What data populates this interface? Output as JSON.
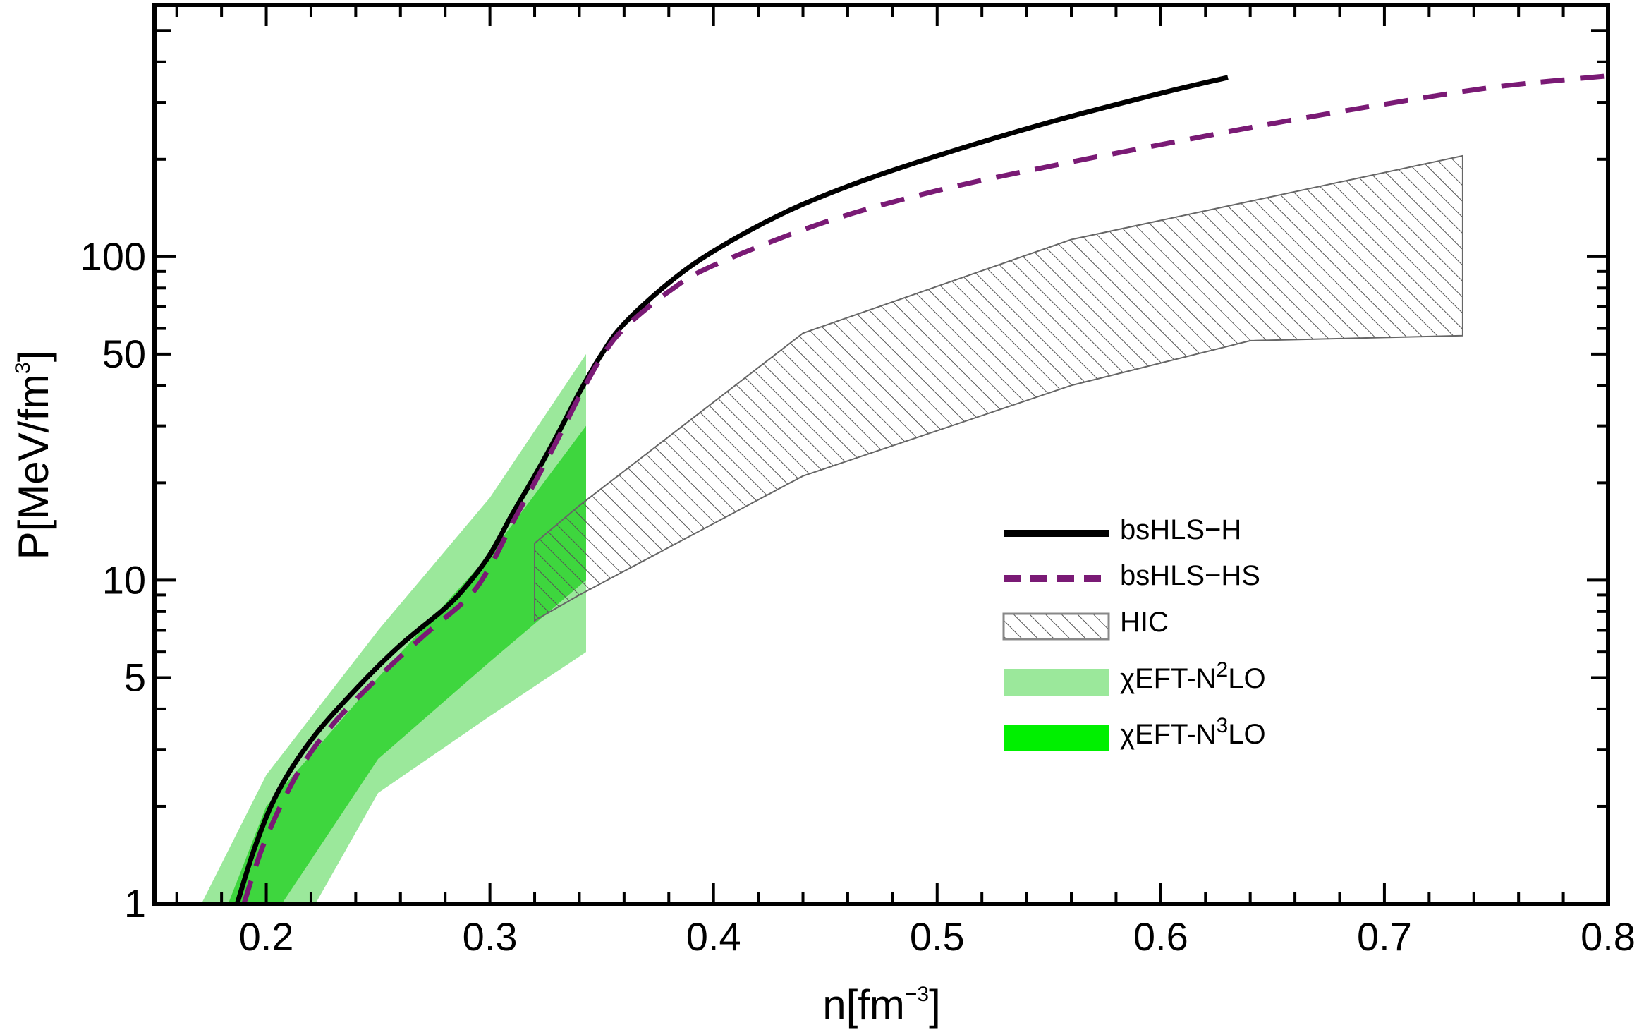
{
  "chart_data": {
    "type": "line",
    "title": "",
    "xlabel": {
      "text": "n[fm",
      "sup": "−3",
      "close": "]"
    },
    "ylabel": {
      "text": "P[MeV/fm",
      "sup": "3",
      "close": "]"
    },
    "xlim": [
      0.15,
      0.8
    ],
    "ylim": [
      1,
      600
    ],
    "yscale": "log",
    "grid": false,
    "legend_position": "center-right",
    "x_ticks": [
      {
        "value": 0.2,
        "label": "0.2"
      },
      {
        "value": 0.3,
        "label": "0.3"
      },
      {
        "value": 0.4,
        "label": "0.4"
      },
      {
        "value": 0.5,
        "label": "0.5"
      },
      {
        "value": 0.6,
        "label": "0.6"
      },
      {
        "value": 0.7,
        "label": "0.7"
      },
      {
        "value": 0.8,
        "label": "0.8"
      }
    ],
    "y_ticks": [
      {
        "value": 1,
        "label": "1"
      },
      {
        "value": 5,
        "label": "5"
      },
      {
        "value": 10,
        "label": "10"
      },
      {
        "value": 50,
        "label": "50"
      },
      {
        "value": 100,
        "label": "100"
      }
    ],
    "series": [
      {
        "name": "bsHLS−H",
        "style": "solid",
        "color": "#000000",
        "points": [
          [
            0.187,
            1.0
          ],
          [
            0.195,
            1.5
          ],
          [
            0.205,
            2.2
          ],
          [
            0.22,
            3.2
          ],
          [
            0.24,
            4.6
          ],
          [
            0.26,
            6.3
          ],
          [
            0.28,
            8.2
          ],
          [
            0.29,
            9.7
          ],
          [
            0.3,
            12
          ],
          [
            0.31,
            16
          ],
          [
            0.32,
            21
          ],
          [
            0.33,
            28
          ],
          [
            0.34,
            38
          ],
          [
            0.35,
            50
          ],
          [
            0.36,
            62
          ],
          [
            0.38,
            83
          ],
          [
            0.4,
            104
          ],
          [
            0.43,
            135
          ],
          [
            0.46,
            165
          ],
          [
            0.5,
            205
          ],
          [
            0.55,
            260
          ],
          [
            0.6,
            320
          ],
          [
            0.63,
            358
          ]
        ]
      },
      {
        "name": "bsHLS−HS",
        "style": "dashed",
        "color": "#7a1a75",
        "points": [
          [
            0.19,
            1.0
          ],
          [
            0.2,
            1.6
          ],
          [
            0.215,
            2.6
          ],
          [
            0.23,
            3.6
          ],
          [
            0.25,
            5.0
          ],
          [
            0.27,
            6.7
          ],
          [
            0.29,
            8.8
          ],
          [
            0.3,
            11
          ],
          [
            0.31,
            15
          ],
          [
            0.32,
            20
          ],
          [
            0.33,
            27
          ],
          [
            0.34,
            37
          ],
          [
            0.35,
            49
          ],
          [
            0.36,
            60
          ],
          [
            0.38,
            78
          ],
          [
            0.4,
            94
          ],
          [
            0.45,
            128
          ],
          [
            0.5,
            160
          ],
          [
            0.55,
            190
          ],
          [
            0.6,
            222
          ],
          [
            0.65,
            258
          ],
          [
            0.7,
            296
          ],
          [
            0.75,
            335
          ],
          [
            0.8,
            362
          ]
        ]
      }
    ],
    "bands": [
      {
        "name": "χEFT-N²LO",
        "color": "#9be89b",
        "upper": [
          [
            0.171,
            1.0
          ],
          [
            0.2,
            2.5
          ],
          [
            0.25,
            7.0
          ],
          [
            0.3,
            18
          ],
          [
            0.343,
            50
          ]
        ],
        "lower": [
          [
            0.222,
            1.0
          ],
          [
            0.25,
            2.2
          ],
          [
            0.3,
            3.8
          ],
          [
            0.343,
            6.0
          ]
        ]
      },
      {
        "name": "χEFT-N³LO",
        "color": "#3ed63e",
        "upper": [
          [
            0.183,
            1.0
          ],
          [
            0.2,
            2.0
          ],
          [
            0.25,
            5.0
          ],
          [
            0.3,
            12
          ],
          [
            0.343,
            30
          ]
        ],
        "lower": [
          [
            0.207,
            1.0
          ],
          [
            0.25,
            2.8
          ],
          [
            0.3,
            5.6
          ],
          [
            0.343,
            10
          ]
        ]
      },
      {
        "name": "HIC",
        "pattern": "hatched",
        "color": "#555555",
        "upper": [
          [
            0.32,
            13
          ],
          [
            0.34,
            17
          ],
          [
            0.44,
            58
          ],
          [
            0.56,
            113
          ],
          [
            0.735,
            205
          ]
        ],
        "lower": [
          [
            0.32,
            7.5
          ],
          [
            0.34,
            9
          ],
          [
            0.44,
            21
          ],
          [
            0.56,
            40
          ],
          [
            0.64,
            55
          ],
          [
            0.735,
            57
          ]
        ]
      }
    ],
    "legend": [
      {
        "label": "bsHLS−H",
        "kind": "solid-line",
        "color": "#000000"
      },
      {
        "label": "bsHLS−HS",
        "kind": "dashed-line",
        "color": "#7a1a75"
      },
      {
        "label": "HIC",
        "kind": "hatched-box",
        "color": "#555555"
      },
      {
        "label": "χEFT-N",
        "sup": "2",
        "tail": "LO",
        "kind": "box",
        "color": "#9be89b"
      },
      {
        "label": "χEFT-N",
        "sup": "3",
        "tail": "LO",
        "kind": "box",
        "color": "#00f000"
      }
    ]
  }
}
